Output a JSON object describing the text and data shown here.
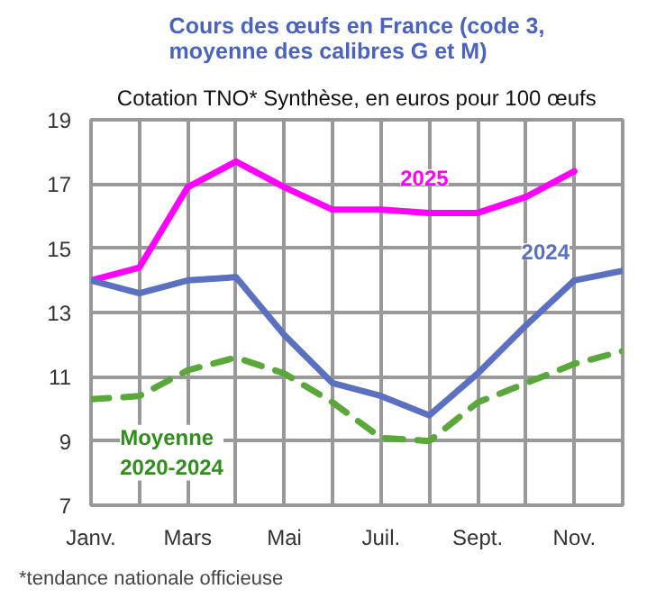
{
  "chart_data": {
    "type": "line",
    "title": "Cours des œufs en France (code 3, moyenne des calibres G et M)",
    "subtitle": "Cotation TNO* Synthèse, en euros pour 100 œufs",
    "categories": [
      "Janv.",
      null,
      "Mars",
      null,
      "Mai",
      null,
      "Juil.",
      null,
      "Sept.",
      null,
      "Nov.",
      null
    ],
    "series": [
      {
        "name": "2025",
        "color": "#ff00ff",
        "values": [
          14.0,
          14.4,
          16.9,
          17.7,
          16.9,
          16.2,
          16.2,
          16.1,
          16.1,
          16.6,
          17.4,
          null
        ]
      },
      {
        "name": "2024",
        "color": "#5b70c0",
        "values": [
          14.0,
          13.6,
          14.0,
          14.1,
          12.3,
          10.8,
          10.4,
          9.8,
          11.1,
          12.6,
          14.0,
          14.3
        ]
      },
      {
        "name": "Moyenne 2020-2024",
        "color": "#5aa83a",
        "line_style": "dashed",
        "values": [
          10.3,
          10.4,
          11.2,
          11.6,
          11.1,
          10.2,
          9.1,
          9.0,
          10.2,
          10.8,
          11.4,
          11.8
        ]
      }
    ],
    "ylim": [
      7,
      19
    ],
    "yticks": [
      7,
      9,
      11,
      13,
      15,
      17,
      19
    ],
    "grid": true,
    "line_style": "solid",
    "marker": "none",
    "annotations": [
      "*tendance nationale officieuse"
    ]
  }
}
